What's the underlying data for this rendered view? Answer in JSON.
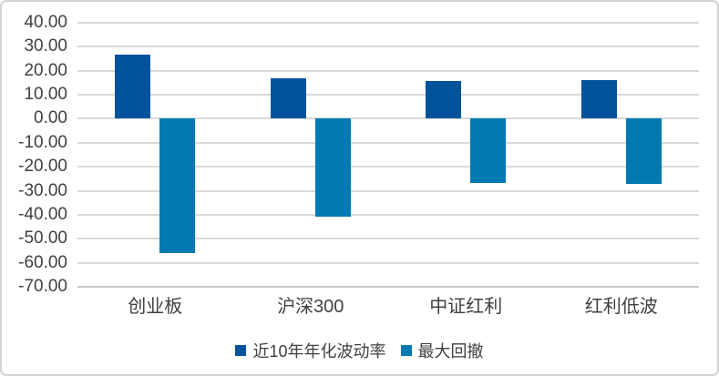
{
  "chart_data": {
    "type": "bar",
    "title": "",
    "categories": [
      "创业板",
      "沪深300",
      "中证红利",
      "红利低波"
    ],
    "category_ids": [
      "chuangyeban",
      "hushen300",
      "zhongzheng-hongli",
      "hongli-dibo"
    ],
    "series": [
      {
        "id": "annualized-volatility-10y",
        "name": "近10年年化波动率",
        "color": "#01539B",
        "values": [
          26.8,
          17.0,
          15.8,
          16.1
        ]
      },
      {
        "id": "max-drawdown",
        "name": "最大回撤",
        "color": "#0179B1",
        "values": [
          -56.0,
          -40.8,
          -26.8,
          -27.3
        ]
      }
    ],
    "ylim": [
      -70,
      40
    ],
    "ytick_step": 10,
    "ytick_labels": [
      "40.00",
      "30.00",
      "20.00",
      "10.00",
      "0.00",
      "-10.00",
      "-20.00",
      "-30.00",
      "-40.00",
      "-50.00",
      "-60.00",
      "-70.00"
    ],
    "grid": true,
    "legend_position": "bottom",
    "colors": {
      "grid": "#d9d9d9",
      "axis_text": "#404040",
      "border": "#d3d3d3",
      "background": "#ffffff"
    }
  }
}
